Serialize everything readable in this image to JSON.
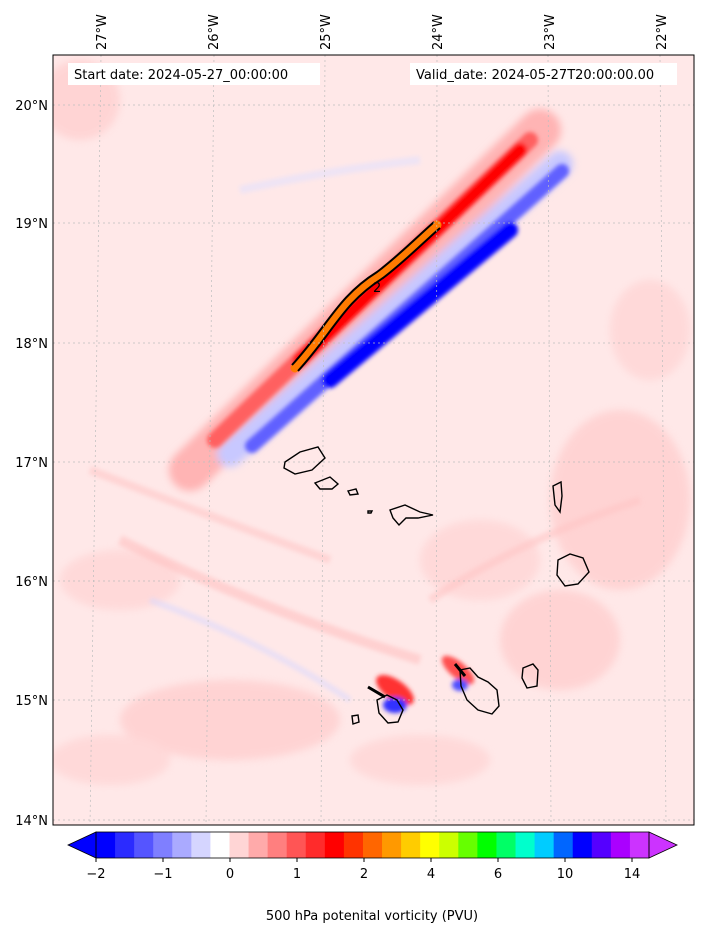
{
  "header": {
    "start_date": "Start date: 2024-05-27_00:00:00",
    "valid_date": "Valid_date: 2024-05-27T20:00:00.00"
  },
  "map": {
    "lon_labels": [
      "27°W",
      "26°W",
      "25°W",
      "24°W",
      "23°W",
      "22°W"
    ],
    "lat_labels": [
      "20°N",
      "19°N",
      "18°N",
      "17°N",
      "16°N",
      "15°N",
      "14°N"
    ],
    "contour_label": "2"
  },
  "colorbar": {
    "tick_labels": [
      "−2",
      "−1",
      "0",
      "1",
      "2",
      "4",
      "6",
      "10",
      "14"
    ],
    "label": "500 hPa potenital vorticity (PVU)",
    "colors": [
      "#0000ff",
      "#2b2bff",
      "#5555ff",
      "#7f7fff",
      "#aaaaff",
      "#d5d5ff",
      "#ffffff",
      "#ffd5d5",
      "#ffaaaa",
      "#ff7f7f",
      "#ff5555",
      "#ff2b2b",
      "#ff0000",
      "#ff3300",
      "#ff6600",
      "#ff9900",
      "#ffcc00",
      "#ffff00",
      "#ccff00",
      "#66ff00",
      "#00ff00",
      "#00ff66",
      "#00ffcc",
      "#00ccff",
      "#0066ff",
      "#0000ff",
      "#5500ff",
      "#aa00ff",
      "#cc33ff"
    ]
  },
  "style": {
    "background_fill": "#ffe8e8",
    "pv_high": "#ff1010",
    "pv_low": "#1010ff"
  }
}
